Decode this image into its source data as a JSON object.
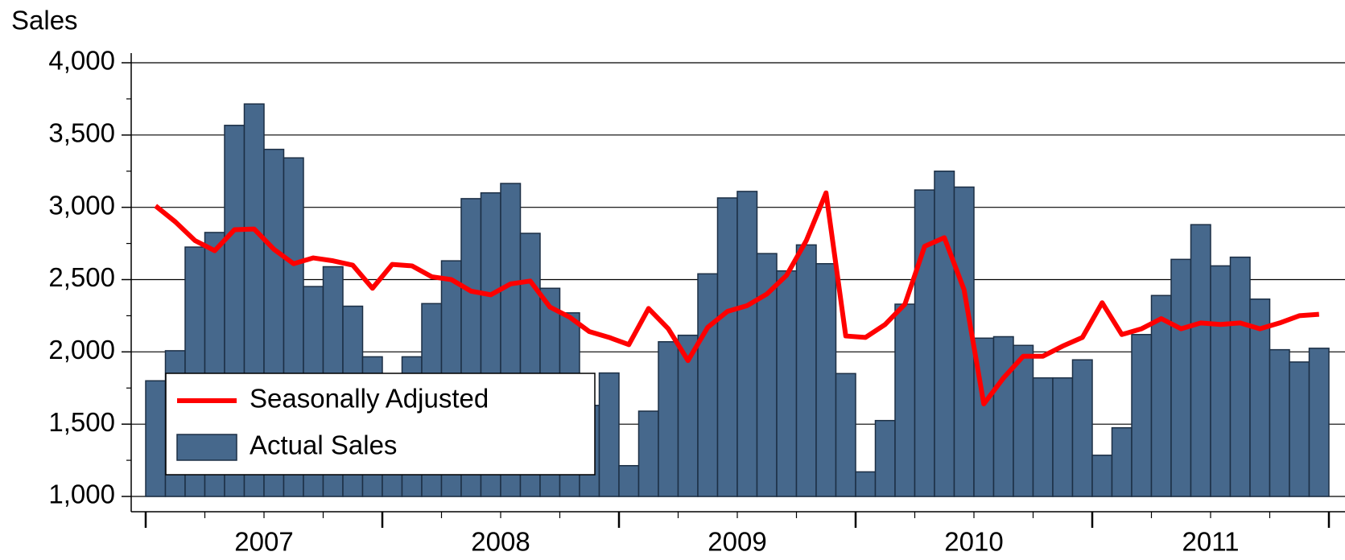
{
  "chart_data": {
    "type": "bar_line",
    "y_label": "Sales",
    "categories": [
      "2007",
      "2008",
      "2009",
      "2010",
      "2011"
    ],
    "series": [
      {
        "name": "Actual Sales",
        "type": "bar",
        "color": "#46688c",
        "values": [
          [
            1800,
            2008,
            2725,
            2826,
            3567,
            3715,
            3401,
            3342,
            2452,
            2589,
            2316,
            1966
          ],
          [
            1850,
            1966,
            2334,
            2630,
            3060,
            3100,
            3165,
            2820,
            2440,
            2270,
            1630,
            1854
          ],
          [
            1213,
            1590,
            2070,
            2115,
            2540,
            3065,
            3110,
            2680,
            2560,
            2740,
            2610,
            1850
          ],
          [
            1170,
            1525,
            2330,
            3120,
            3250,
            3140,
            2095,
            2105,
            2045,
            1820,
            1820,
            1945
          ],
          [
            1285,
            1475,
            2120,
            2390,
            2640,
            2880,
            2595,
            2655,
            2365,
            2015,
            1930,
            2025
          ]
        ]
      },
      {
        "name": "Seasonally Adjusted",
        "type": "line",
        "color": "#ff0000",
        "values": [
          [
            3010,
            2900,
            2770,
            2700,
            2845,
            2850,
            2710,
            2610,
            2650,
            2630,
            2600,
            2440
          ],
          [
            2605,
            2595,
            2520,
            2500,
            2420,
            2395,
            2470,
            2490,
            2310,
            2240,
            2140,
            2100
          ],
          [
            2050,
            2300,
            2160,
            1940,
            2170,
            2280,
            2320,
            2400,
            2530,
            2770,
            3100,
            2110
          ],
          [
            2100,
            2190,
            2330,
            2730,
            2790,
            2430,
            1640,
            1820,
            1970,
            1970,
            2040,
            2100
          ],
          [
            2340,
            2120,
            2160,
            2230,
            2160,
            2200,
            2190,
            2200,
            2160,
            2200,
            2250,
            2260
          ]
        ]
      }
    ],
    "ylim": [
      1000,
      4000
    ],
    "yticks": [
      {
        "value": 1000,
        "label": "1,000"
      },
      {
        "value": 1500,
        "label": "1,500"
      },
      {
        "value": 2000,
        "label": "2,000"
      },
      {
        "value": 2500,
        "label": "2,500"
      },
      {
        "value": 3000,
        "label": "3,000"
      },
      {
        "value": 3500,
        "label": "3,500"
      },
      {
        "value": 4000,
        "label": "4,000"
      }
    ],
    "minor_yticks": [
      1250,
      1750,
      2250,
      2750,
      3250,
      3750
    ],
    "grid": true,
    "legend": "lower left"
  }
}
